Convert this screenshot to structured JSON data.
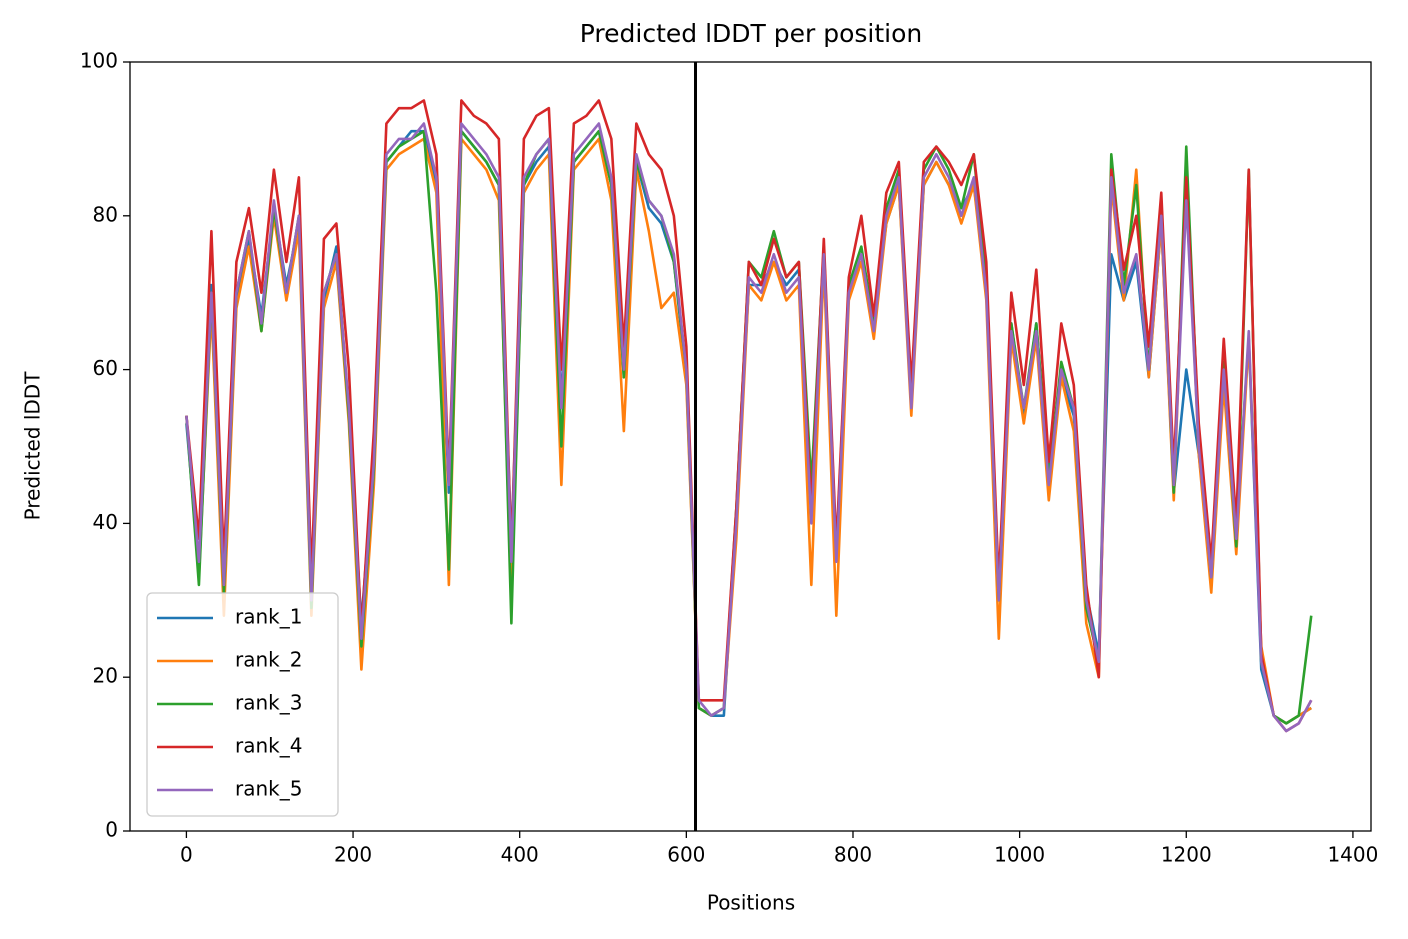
{
  "chart_data": {
    "type": "line",
    "title": "Predicted lDDT per position",
    "xlabel": "Positions",
    "ylabel": "Predicted lDDT",
    "x": [
      0,
      15,
      30,
      45,
      60,
      75,
      90,
      105,
      120,
      135,
      150,
      165,
      180,
      195,
      210,
      225,
      240,
      255,
      270,
      285,
      300,
      315,
      330,
      345,
      360,
      375,
      390,
      405,
      420,
      435,
      450,
      465,
      480,
      495,
      510,
      525,
      540,
      555,
      570,
      585,
      600,
      615,
      630,
      645,
      660,
      675,
      690,
      705,
      720,
      735,
      750,
      765,
      780,
      795,
      810,
      825,
      840,
      855,
      870,
      885,
      900,
      915,
      930,
      945,
      960,
      975,
      990,
      1005,
      1020,
      1035,
      1050,
      1065,
      1080,
      1095,
      1110,
      1125,
      1140,
      1155,
      1170,
      1185,
      1200,
      1215,
      1230,
      1245,
      1260,
      1275,
      1290,
      1305,
      1320,
      1335,
      1350
    ],
    "series": [
      {
        "name": "rank_1",
        "color": "#1f77b4",
        "values": [
          53,
          34,
          71,
          31,
          69,
          77,
          67,
          81,
          71,
          79,
          31,
          69,
          76,
          54,
          27,
          49,
          87,
          89,
          91,
          91,
          84,
          44,
          91,
          89,
          87,
          84,
          37,
          84,
          87,
          89,
          56,
          87,
          89,
          91,
          84,
          59,
          87,
          81,
          79,
          74,
          59,
          16,
          15,
          15,
          41,
          71,
          71,
          74,
          71,
          73,
          42,
          74,
          36,
          71,
          74,
          66,
          79,
          84,
          56,
          84,
          87,
          84,
          81,
          84,
          71,
          31,
          66,
          54,
          66,
          46,
          59,
          54,
          31,
          23,
          75,
          69,
          74,
          59,
          79,
          44,
          60,
          49,
          34,
          59,
          39,
          64,
          21,
          15,
          14,
          15,
          16
        ]
      },
      {
        "name": "rank_2",
        "color": "#ff7f0e",
        "values": [
          54,
          33,
          68,
          28,
          68,
          76,
          65,
          80,
          69,
          78,
          28,
          68,
          74,
          53,
          21,
          45,
          86,
          88,
          89,
          90,
          83,
          32,
          90,
          88,
          86,
          82,
          30,
          83,
          86,
          88,
          45,
          86,
          88,
          90,
          82,
          52,
          86,
          78,
          68,
          70,
          58,
          16,
          15,
          16,
          38,
          71,
          69,
          74,
          69,
          71,
          32,
          74,
          28,
          69,
          74,
          64,
          79,
          84,
          54,
          84,
          87,
          84,
          79,
          84,
          69,
          25,
          64,
          53,
          64,
          43,
          59,
          52,
          27,
          20,
          84,
          69,
          86,
          59,
          79,
          43,
          86,
          49,
          31,
          58,
          36,
          64,
          24,
          15,
          14,
          15,
          16
        ]
      },
      {
        "name": "rank_3",
        "color": "#2ca02c",
        "values": [
          54,
          32,
          70,
          31,
          70,
          78,
          65,
          81,
          70,
          80,
          29,
          70,
          75,
          54,
          24,
          47,
          87,
          89,
          90,
          91,
          70,
          34,
          91,
          89,
          87,
          84,
          27,
          84,
          88,
          90,
          50,
          87,
          89,
          91,
          84,
          59,
          87,
          82,
          80,
          74,
          60,
          16,
          15,
          16,
          42,
          74,
          72,
          78,
          72,
          74,
          45,
          76,
          36,
          71,
          76,
          66,
          81,
          86,
          56,
          86,
          89,
          86,
          81,
          88,
          71,
          30,
          66,
          55,
          66,
          46,
          61,
          55,
          29,
          22,
          88,
          71,
          84,
          60,
          82,
          44,
          89,
          51,
          33,
          61,
          37,
          86,
          22,
          15,
          14,
          15,
          28
        ]
      },
      {
        "name": "rank_4",
        "color": "#d62728",
        "values": [
          54,
          38,
          78,
          35,
          74,
          81,
          70,
          86,
          74,
          85,
          33,
          77,
          79,
          60,
          26,
          52,
          92,
          94,
          94,
          95,
          88,
          46,
          95,
          93,
          92,
          90,
          36,
          90,
          93,
          94,
          60,
          92,
          93,
          95,
          90,
          63,
          92,
          88,
          86,
          80,
          63,
          17,
          17,
          17,
          42,
          74,
          71,
          77,
          72,
          74,
          42,
          77,
          37,
          72,
          80,
          67,
          83,
          87,
          58,
          87,
          89,
          87,
          84,
          88,
          74,
          32,
          70,
          58,
          73,
          48,
          66,
          58,
          32,
          20,
          86,
          73,
          80,
          63,
          83,
          47,
          85,
          53,
          35,
          64,
          40,
          86,
          23,
          15,
          13,
          14,
          17
        ]
      },
      {
        "name": "rank_5",
        "color": "#9467bd",
        "values": [
          54,
          35,
          70,
          32,
          70,
          78,
          66,
          82,
          70,
          80,
          30,
          70,
          75,
          55,
          25,
          48,
          88,
          90,
          90,
          92,
          85,
          45,
          92,
          90,
          88,
          85,
          35,
          85,
          88,
          90,
          55,
          88,
          90,
          92,
          85,
          60,
          88,
          82,
          80,
          75,
          60,
          17,
          15,
          16,
          40,
          72,
          70,
          75,
          70,
          72,
          40,
          75,
          35,
          70,
          75,
          65,
          80,
          85,
          55,
          85,
          88,
          85,
          80,
          85,
          70,
          30,
          65,
          55,
          65,
          45,
          60,
          55,
          30,
          22,
          85,
          70,
          75,
          60,
          80,
          45,
          82,
          50,
          33,
          60,
          38,
          65,
          22,
          15,
          13,
          14,
          17
        ]
      }
    ],
    "vlines": [
      611
    ],
    "vline_color": "#000000",
    "xlim": [
      -67.7,
      1421.7
    ],
    "xticks": [
      0,
      200,
      400,
      600,
      800,
      1000,
      1200,
      1400
    ],
    "ylim": [
      0,
      100
    ],
    "yticks": [
      0,
      20,
      40,
      60,
      80,
      100
    ],
    "grid": false,
    "legend": "lower left"
  }
}
